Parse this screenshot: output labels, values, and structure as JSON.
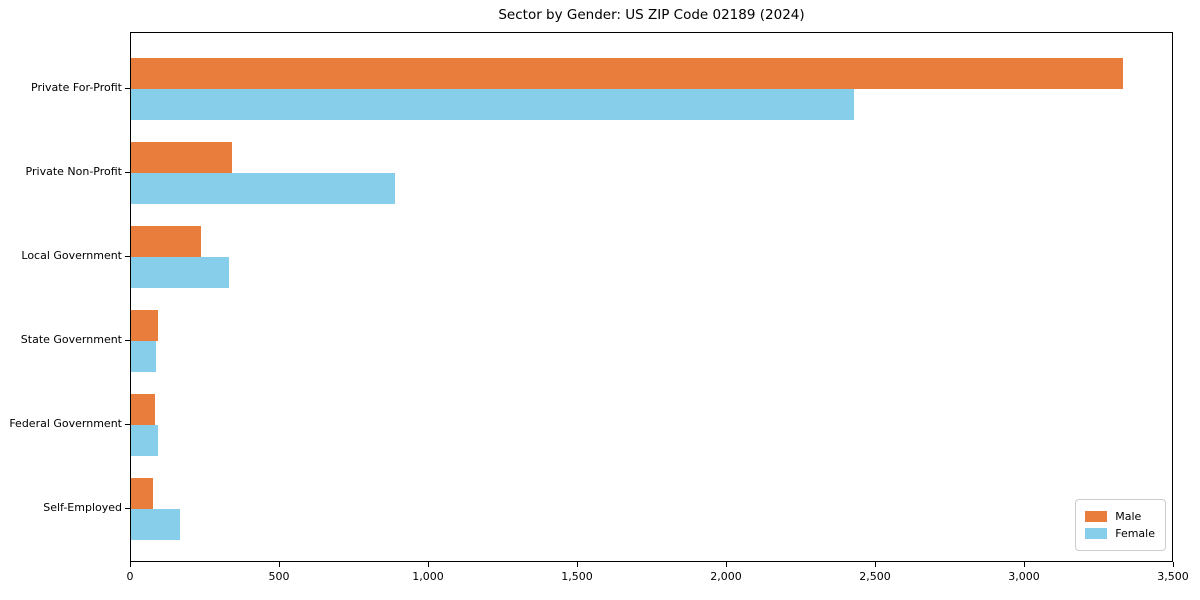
{
  "chart_data": {
    "type": "bar",
    "orientation": "horizontal",
    "title": "Sector by Gender: US ZIP Code 02189 (2024)",
    "categories": [
      "Private For-Profit",
      "Private Non-Profit",
      "Local Government",
      "State Government",
      "Federal Government",
      "Self-Employed"
    ],
    "series": [
      {
        "name": "Male",
        "color": "#e87d3c",
        "values": [
          3330,
          340,
          235,
          90,
          80,
          75
        ]
      },
      {
        "name": "Female",
        "color": "#87ceeb",
        "values": [
          2425,
          885,
          330,
          85,
          90,
          165
        ]
      }
    ],
    "xlabel": "",
    "ylabel": "",
    "xlim": [
      0,
      3500
    ],
    "xticks": [
      {
        "value": 0,
        "label": "0"
      },
      {
        "value": 500,
        "label": "500"
      },
      {
        "value": 1000,
        "label": "1,000"
      },
      {
        "value": 1500,
        "label": "1,500"
      },
      {
        "value": 2000,
        "label": "2,000"
      },
      {
        "value": 2500,
        "label": "2,500"
      },
      {
        "value": 3000,
        "label": "3,000"
      },
      {
        "value": 3500,
        "label": "3,500"
      }
    ],
    "grid": false,
    "legend_position": "lower right"
  }
}
